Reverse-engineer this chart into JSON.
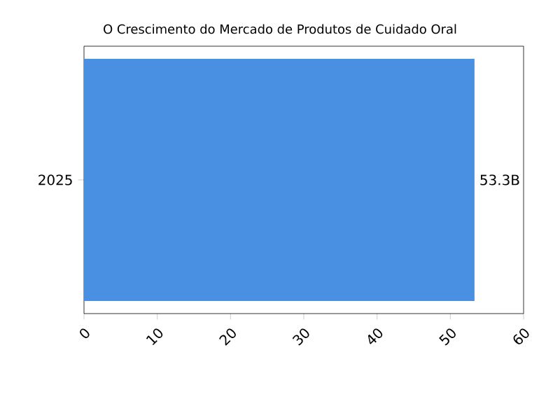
{
  "chart_data": {
    "type": "bar",
    "orientation": "horizontal",
    "title": "O Crescimento do Mercado de Produtos de Cuidado Oral",
    "categories": [
      "2025"
    ],
    "values": [
      53.3
    ],
    "color": "#4a90e2",
    "value_labels": [
      "53.3B"
    ],
    "xlim": [
      0,
      60
    ],
    "xticks": [
      0,
      10,
      20,
      30,
      40,
      50,
      60
    ]
  }
}
